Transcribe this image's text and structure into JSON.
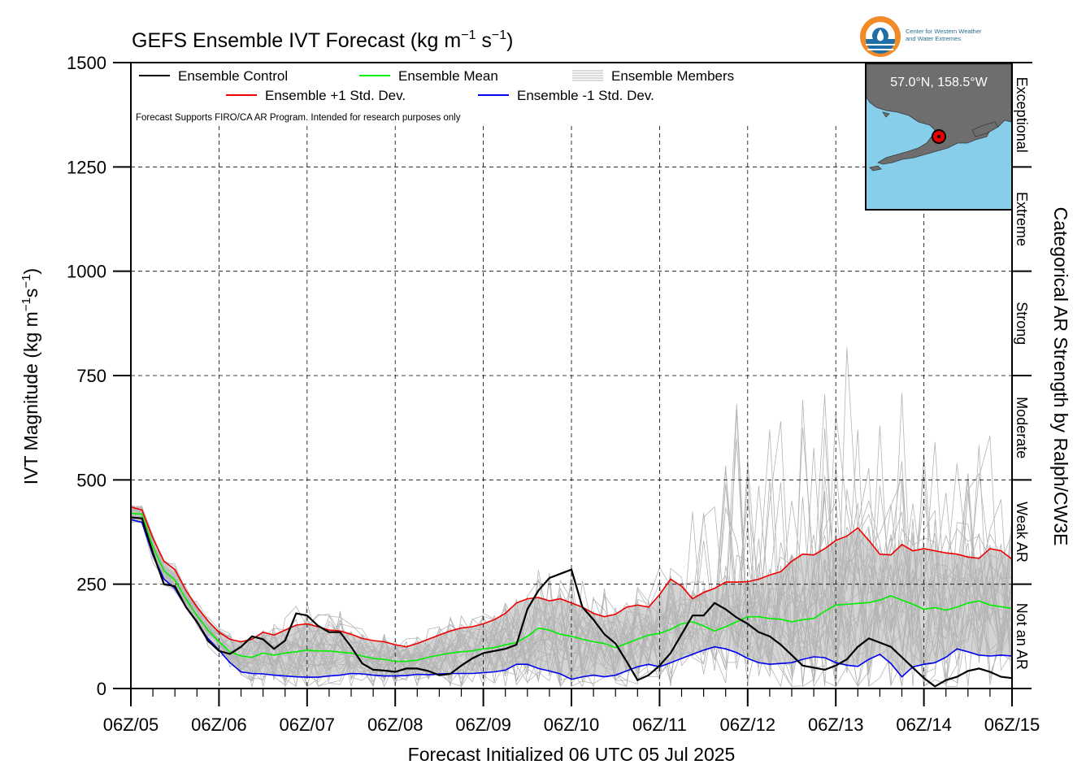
{
  "chart_data": {
    "type": "line",
    "title": "GEFS Ensemble IVT Forecast (kg m",
    "title_exp1": "−1",
    "title_mid": " s",
    "title_exp2": "−1",
    "title_end": ")",
    "xlabel": "Forecast Initialized 06 UTC 05 Jul 2025",
    "ylabel": "IVT Magnitude (kg m",
    "ylabel_exp1": "−1",
    "ylabel_mid": "s",
    "ylabel_exp2": "−1",
    "ylabel_end": ")",
    "right_label": "Categorical AR Strength by Ralph/CW3E",
    "ylim": [
      0,
      1500
    ],
    "xlim_hours": [
      0,
      240
    ],
    "yticks": [
      0,
      250,
      500,
      750,
      1000,
      1250,
      1500
    ],
    "ytick_labels": [
      "0",
      "250",
      "500",
      "750",
      "1000",
      "1250",
      "1500"
    ],
    "xtick_labels": [
      "06Z/05",
      "06Z/06",
      "06Z/07",
      "06Z/08",
      "06Z/09",
      "06Z/10",
      "06Z/11",
      "06Z/12",
      "06Z/13",
      "06Z/14",
      "06Z/15"
    ],
    "x_step_hours": 6,
    "grid": true,
    "legend_placement": "top-left inside plot",
    "categories": [
      {
        "name": "Not an AR",
        "range": [
          0,
          250
        ]
      },
      {
        "name": "Weak AR",
        "range": [
          250,
          500
        ]
      },
      {
        "name": "Moderate",
        "range": [
          500,
          750
        ]
      },
      {
        "name": "Strong",
        "range": [
          750,
          1000
        ]
      },
      {
        "name": "Extreme",
        "range": [
          1000,
          1250
        ]
      },
      {
        "name": "Exceptional",
        "range": [
          1250,
          1500
        ]
      }
    ],
    "legend": [
      {
        "label": "Ensemble Control",
        "color": "#000000"
      },
      {
        "label": "Ensemble Mean",
        "color": "#00ee00"
      },
      {
        "label": "Ensemble Members",
        "color": "#b4b4b4"
      },
      {
        "label": "Ensemble +1 Std. Dev.",
        "color": "#ee0000"
      },
      {
        "label": "Ensemble -1 Std. Dev.",
        "color": "#0000ee"
      }
    ],
    "note": "Forecast Supports FIRO/CA AR Program. Intended for research purposes only",
    "inset": {
      "label": "57.0°N, 158.5°W",
      "water_color": "#87ceeb",
      "land_color": "#6e6e6e",
      "marker_color": "#ee0000"
    },
    "logo": {
      "line1": "Center for Western Weather",
      "line2": "and Water Extremes",
      "colors": {
        "orange": "#f28c28",
        "blue": "#1f6fa6"
      }
    },
    "series": [
      {
        "name": "Ensemble Control",
        "color": "#000000",
        "x": [
          0,
          3,
          6,
          9,
          12,
          15,
          18,
          21,
          24,
          27,
          30,
          33,
          36,
          39,
          42,
          45,
          48,
          51,
          54,
          57,
          60,
          63,
          66,
          69,
          72,
          75,
          78,
          81,
          84,
          87,
          90,
          93,
          96,
          99,
          102,
          105,
          108,
          111,
          114,
          117,
          120,
          123,
          126,
          129,
          132,
          135,
          138,
          141,
          144,
          147,
          150,
          153,
          156,
          159,
          162,
          165,
          168,
          171,
          174,
          177,
          180,
          183,
          186,
          189,
          192,
          195,
          198,
          201,
          204,
          207,
          210,
          213,
          216,
          219,
          222,
          225,
          228,
          231,
          234,
          237,
          240
        ],
        "y": [
          410,
          408,
          325,
          250,
          245,
          195,
          160,
          115,
          90,
          83,
          100,
          125,
          118,
          95,
          115,
          180,
          175,
          150,
          135,
          135,
          100,
          60,
          45,
          43,
          40,
          48,
          48,
          42,
          32,
          35,
          55,
          72,
          85,
          90,
          95,
          105,
          190,
          235,
          265,
          275,
          285,
          195,
          165,
          130,
          108,
          65,
          20,
          32,
          55,
          85,
          130,
          175,
          175,
          205,
          190,
          170,
          155,
          135,
          125,
          105,
          80,
          55,
          50,
          45,
          55,
          70,
          100,
          120,
          110,
          100,
          75,
          50,
          25,
          5,
          20,
          28,
          42,
          48,
          40,
          28,
          25
        ]
      },
      {
        "name": "Ensemble Mean",
        "color": "#00ee00",
        "x": [
          0,
          3,
          6,
          9,
          12,
          15,
          18,
          21,
          24,
          27,
          30,
          33,
          36,
          39,
          42,
          45,
          48,
          51,
          54,
          57,
          60,
          63,
          66,
          69,
          72,
          75,
          78,
          81,
          84,
          87,
          90,
          93,
          96,
          99,
          102,
          105,
          108,
          111,
          114,
          117,
          120,
          123,
          126,
          129,
          132,
          135,
          138,
          141,
          144,
          147,
          150,
          153,
          156,
          159,
          162,
          165,
          168,
          171,
          174,
          177,
          180,
          183,
          186,
          189,
          192,
          195,
          198,
          201,
          204,
          207,
          210,
          213,
          216,
          219,
          222,
          225,
          228,
          231,
          234,
          237,
          240
        ],
        "y": [
          420,
          418,
          340,
          282,
          260,
          215,
          175,
          140,
          112,
          88,
          78,
          75,
          85,
          80,
          85,
          88,
          92,
          90,
          90,
          87,
          85,
          78,
          72,
          70,
          65,
          65,
          68,
          75,
          80,
          85,
          88,
          90,
          95,
          98,
          105,
          110,
          125,
          145,
          140,
          130,
          125,
          118,
          112,
          108,
          98,
          108,
          118,
          128,
          132,
          142,
          155,
          160,
          150,
          138,
          148,
          160,
          172,
          172,
          168,
          166,
          160,
          165,
          168,
          185,
          200,
          202,
          204,
          206,
          212,
          222,
          212,
          202,
          190,
          194,
          188,
          195,
          205,
          210,
          200,
          196,
          192
        ]
      },
      {
        "name": "Ensemble +1 Std. Dev.",
        "color": "#ee0000",
        "x": [
          0,
          3,
          6,
          9,
          12,
          15,
          18,
          21,
          24,
          27,
          30,
          33,
          36,
          39,
          42,
          45,
          48,
          51,
          54,
          57,
          60,
          63,
          66,
          69,
          72,
          75,
          78,
          81,
          84,
          87,
          90,
          93,
          96,
          99,
          102,
          105,
          108,
          111,
          114,
          117,
          120,
          123,
          126,
          129,
          132,
          135,
          138,
          141,
          144,
          147,
          150,
          153,
          156,
          159,
          162,
          165,
          168,
          171,
          174,
          177,
          180,
          183,
          186,
          189,
          192,
          195,
          198,
          201,
          204,
          207,
          210,
          213,
          216,
          219,
          222,
          225,
          228,
          231,
          234,
          237,
          240
        ],
        "y": [
          435,
          428,
          360,
          305,
          285,
          235,
          195,
          162,
          135,
          118,
          112,
          118,
          135,
          128,
          140,
          152,
          155,
          148,
          140,
          138,
          130,
          120,
          115,
          112,
          105,
          100,
          108,
          118,
          128,
          138,
          145,
          148,
          155,
          165,
          180,
          205,
          215,
          218,
          210,
          215,
          205,
          195,
          180,
          172,
          178,
          195,
          200,
          195,
          225,
          262,
          245,
          215,
          230,
          240,
          255,
          255,
          256,
          262,
          272,
          280,
          305,
          322,
          320,
          335,
          355,
          365,
          385,
          355,
          322,
          320,
          345,
          330,
          335,
          330,
          325,
          322,
          315,
          312,
          335,
          330,
          310
        ]
      },
      {
        "name": "Ensemble -1 Std. Dev.",
        "color": "#0000ee",
        "x": [
          0,
          3,
          6,
          9,
          12,
          15,
          18,
          21,
          24,
          27,
          30,
          33,
          36,
          39,
          42,
          45,
          48,
          51,
          54,
          57,
          60,
          63,
          66,
          69,
          72,
          75,
          78,
          81,
          84,
          87,
          90,
          93,
          96,
          99,
          102,
          105,
          108,
          111,
          114,
          117,
          120,
          123,
          126,
          129,
          132,
          135,
          138,
          141,
          144,
          147,
          150,
          153,
          156,
          159,
          162,
          165,
          168,
          171,
          174,
          177,
          180,
          183,
          186,
          189,
          192,
          195,
          198,
          201,
          204,
          207,
          210,
          213,
          216,
          219,
          222,
          225,
          228,
          231,
          234,
          237,
          240
        ],
        "y": [
          405,
          398,
          320,
          262,
          240,
          195,
          158,
          120,
          92,
          62,
          40,
          36,
          35,
          32,
          30,
          28,
          27,
          27,
          30,
          32,
          36,
          35,
          32,
          30,
          30,
          31,
          34,
          33,
          35,
          36,
          36,
          36,
          38,
          40,
          44,
          58,
          58,
          48,
          42,
          35,
          22,
          28,
          32,
          28,
          32,
          42,
          52,
          58,
          52,
          62,
          72,
          82,
          92,
          100,
          95,
          86,
          72,
          62,
          58,
          60,
          62,
          70,
          76,
          74,
          62,
          56,
          53,
          70,
          82,
          60,
          28,
          52,
          58,
          62,
          75,
          95,
          88,
          80,
          78,
          80,
          78
        ]
      }
    ]
  }
}
